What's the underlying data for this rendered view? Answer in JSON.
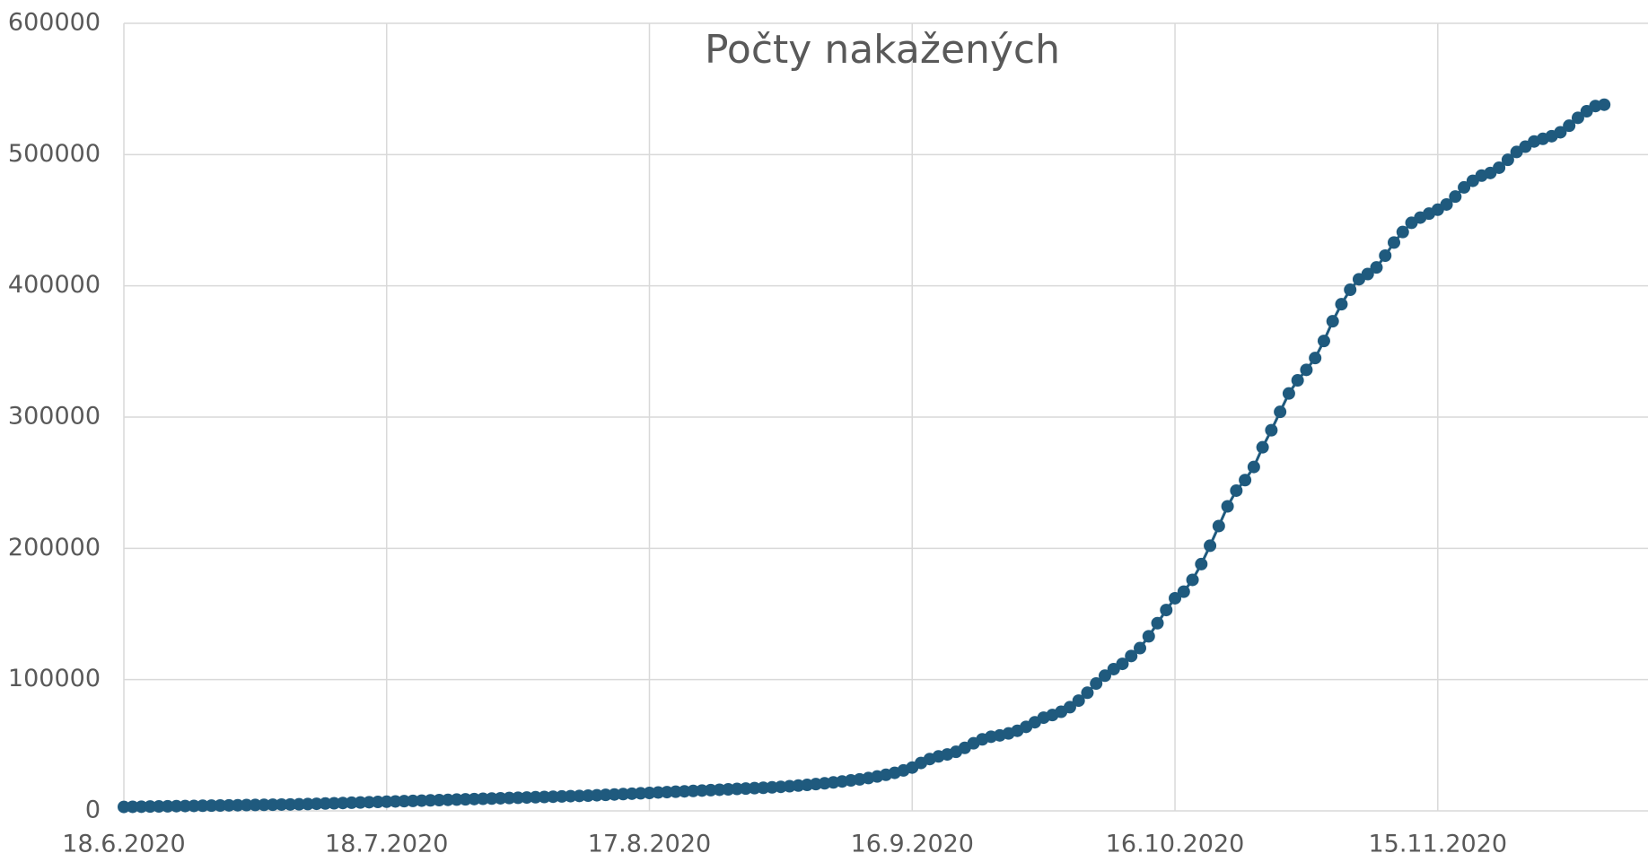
{
  "chart_data": {
    "type": "line",
    "title": "Počty nakažených",
    "x": [
      "18.6.2020",
      "19.6.2020",
      "20.6.2020",
      "21.6.2020",
      "22.6.2020",
      "23.6.2020",
      "24.6.2020",
      "25.6.2020",
      "26.6.2020",
      "27.6.2020",
      "28.6.2020",
      "29.6.2020",
      "30.6.2020",
      "1.7.2020",
      "2.7.2020",
      "3.7.2020",
      "4.7.2020",
      "5.7.2020",
      "6.7.2020",
      "7.7.2020",
      "8.7.2020",
      "9.7.2020",
      "10.7.2020",
      "11.7.2020",
      "12.7.2020",
      "13.7.2020",
      "14.7.2020",
      "15.7.2020",
      "16.7.2020",
      "17.7.2020",
      "18.7.2020",
      "19.7.2020",
      "20.7.2020",
      "21.7.2020",
      "22.7.2020",
      "23.7.2020",
      "24.7.2020",
      "25.7.2020",
      "26.7.2020",
      "27.7.2020",
      "28.7.2020",
      "29.7.2020",
      "30.7.2020",
      "31.7.2020",
      "1.8.2020",
      "2.8.2020",
      "3.8.2020",
      "4.8.2020",
      "5.8.2020",
      "6.8.2020",
      "7.8.2020",
      "8.8.2020",
      "9.8.2020",
      "10.8.2020",
      "11.8.2020",
      "12.8.2020",
      "13.8.2020",
      "14.8.2020",
      "15.8.2020",
      "16.8.2020",
      "17.8.2020",
      "18.8.2020",
      "19.8.2020",
      "20.8.2020",
      "21.8.2020",
      "22.8.2020",
      "23.8.2020",
      "24.8.2020",
      "25.8.2020",
      "26.8.2020",
      "27.8.2020",
      "28.8.2020",
      "29.8.2020",
      "30.8.2020",
      "31.8.2020",
      "1.9.2020",
      "2.9.2020",
      "3.9.2020",
      "4.9.2020",
      "5.9.2020",
      "6.9.2020",
      "7.9.2020",
      "8.9.2020",
      "9.9.2020",
      "10.9.2020",
      "11.9.2020",
      "12.9.2020",
      "13.9.2020",
      "14.9.2020",
      "15.9.2020",
      "16.9.2020",
      "17.9.2020",
      "18.9.2020",
      "19.9.2020",
      "20.9.2020",
      "21.9.2020",
      "22.9.2020",
      "23.9.2020",
      "24.9.2020",
      "25.9.2020",
      "26.9.2020",
      "27.9.2020",
      "28.9.2020",
      "29.9.2020",
      "30.9.2020",
      "1.10.2020",
      "2.10.2020",
      "3.10.2020",
      "4.10.2020",
      "5.10.2020",
      "6.10.2020",
      "7.10.2020",
      "8.10.2020",
      "9.10.2020",
      "10.10.2020",
      "11.10.2020",
      "12.10.2020",
      "13.10.2020",
      "14.10.2020",
      "15.10.2020",
      "16.10.2020",
      "17.10.2020",
      "18.10.2020",
      "19.10.2020",
      "20.10.2020",
      "21.10.2020",
      "22.10.2020",
      "23.10.2020",
      "24.10.2020",
      "25.10.2020",
      "26.10.2020",
      "27.10.2020",
      "28.10.2020",
      "29.10.2020",
      "30.10.2020",
      "31.10.2020",
      "1.11.2020",
      "2.11.2020",
      "3.11.2020",
      "4.11.2020",
      "5.11.2020",
      "6.11.2020",
      "7.11.2020",
      "8.11.2020",
      "9.11.2020",
      "10.11.2020",
      "11.11.2020",
      "12.11.2020",
      "13.11.2020",
      "14.11.2020",
      "15.11.2020",
      "16.11.2020",
      "17.11.2020",
      "18.11.2020",
      "19.11.2020",
      "20.11.2020",
      "21.11.2020",
      "22.11.2020",
      "23.11.2020",
      "24.11.2020",
      "25.11.2020",
      "26.11.2020",
      "27.11.2020",
      "28.11.2020",
      "29.11.2020",
      "30.11.2020",
      "1.12.2020",
      "2.12.2020",
      "3.12.2020",
      "4.12.2020"
    ],
    "values": [
      3000,
      3100,
      3200,
      3300,
      3400,
      3500,
      3600,
      3700,
      3800,
      3900,
      4000,
      4100,
      4200,
      4300,
      4400,
      4500,
      4600,
      4700,
      4800,
      4900,
      5000,
      5200,
      5400,
      5600,
      5800,
      6000,
      6200,
      6400,
      6600,
      6800,
      7000,
      7200,
      7400,
      7600,
      7800,
      8000,
      8200,
      8400,
      8600,
      8800,
      9000,
      9200,
      9400,
      9600,
      9800,
      10000,
      10200,
      10400,
      10600,
      10800,
      11000,
      11200,
      11400,
      11600,
      11900,
      12200,
      12500,
      12800,
      13100,
      13400,
      13700,
      14000,
      14300,
      14600,
      14900,
      15200,
      15500,
      15800,
      16100,
      16400,
      16700,
      17000,
      17300,
      17600,
      17900,
      18300,
      18800,
      19300,
      19800,
      20400,
      21000,
      21700,
      22400,
      23200,
      24000,
      25000,
      26200,
      27500,
      29000,
      30800,
      33000,
      36500,
      39500,
      41500,
      43000,
      45000,
      48000,
      51500,
      54500,
      56500,
      57500,
      59000,
      61000,
      64000,
      67500,
      71000,
      73000,
      75500,
      79000,
      84000,
      90000,
      97000,
      103000,
      108000,
      112000,
      118000,
      124000,
      133000,
      143000,
      153000,
      162000,
      167000,
      176000,
      188000,
      202000,
      217000,
      232000,
      244000,
      252000,
      262000,
      277000,
      290000,
      304000,
      318000,
      328000,
      336000,
      345000,
      358000,
      373000,
      386000,
      397000,
      405000,
      409000,
      414000,
      423000,
      433000,
      441000,
      448000,
      452000,
      455000,
      458000,
      462000,
      468000,
      475000,
      480000,
      484000,
      486000,
      490000,
      496000,
      502000,
      506000,
      510000,
      512000,
      514000,
      517000,
      522000,
      528000,
      533000,
      537000,
      538000
    ],
    "color": "#1f5a7e",
    "xlim": [
      "18.6.2020",
      "9.12.2020"
    ],
    "xticks": [
      "18.6.2020",
      "18.7.2020",
      "17.8.2020",
      "16.9.2020",
      "16.10.2020",
      "15.11.2020"
    ],
    "ylim": [
      0,
      600000
    ],
    "yticks": [
      0,
      100000,
      200000,
      300000,
      400000,
      500000,
      600000
    ],
    "grid": true,
    "markers": true
  }
}
